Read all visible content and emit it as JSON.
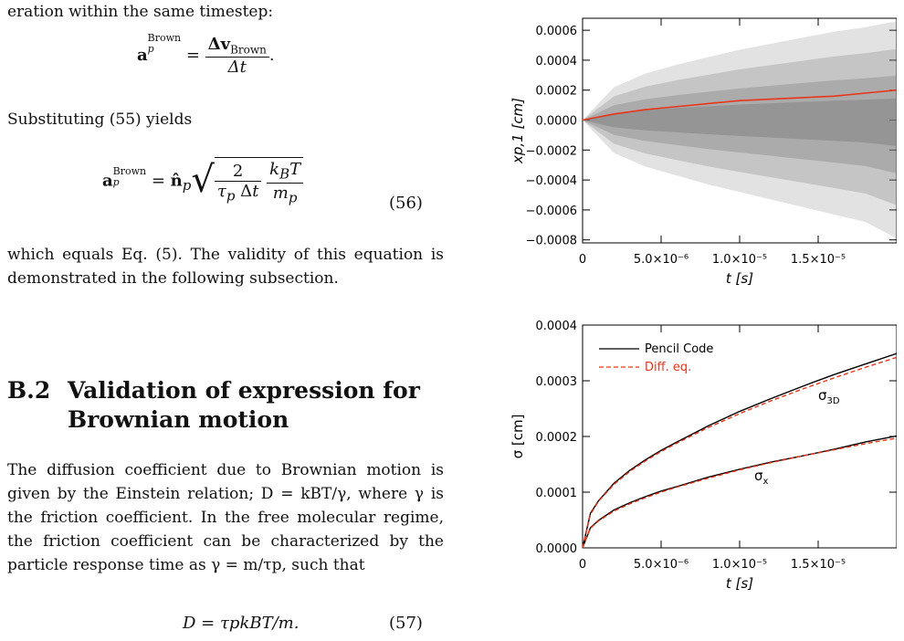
{
  "text": {
    "p1": "eration within the same timestep:",
    "eq1_lhs": "a",
    "eq1_sup": "Brown",
    "eq1_sub": "p",
    "eq1_num": "Δv",
    "eq1_num_sub": "Brown",
    "eq1_den": "Δt",
    "p2": "Substituting (55) yields",
    "eq2_number": "(56)",
    "p3": "which equals Eq. (5). The validity of this equation is demonstrated in the following subsection.",
    "section_number": "B.2",
    "section_title_1": "Validation of expression for",
    "section_title_2": "Brownian motion",
    "p4": "The diffusion coefficient due to Brownian motion is given by the Einstein relation; D = kBT/γ, where γ is the friction coefficient. In the free molecular regime, the friction coefficient can be characterized by the particle response time as γ = m/τp, such that",
    "eq3": "D = τpkBT/m.",
    "eq3_number": "(57)"
  },
  "chart_data": [
    {
      "type": "line",
      "title": "",
      "xlabel": "t [s]",
      "ylabel": "xp,1 [cm]",
      "xlim": [
        0,
        2e-05
      ],
      "ylim": [
        -0.00082,
        0.00068
      ],
      "xticks": [
        "0",
        "5.0×10⁻⁶",
        "1.0×10⁻⁵",
        "1.5×10⁻⁵"
      ],
      "yticks": [
        "0.0006",
        "0.0004",
        "0.0002",
        "0.0000",
        "−0.0002",
        "−0.0004",
        "−0.0006",
        "−0.0008"
      ],
      "x": [
        0,
        2e-06,
        4e-06,
        6e-06,
        8e-06,
        1e-05,
        1.2e-05,
        1.4e-05,
        1.6e-05,
        1.8e-05,
        2e-05
      ],
      "series": [
        {
          "values": [
            0,
            4e-05,
            7e-05,
            9e-05,
            0.00011,
            0.00013,
            0.00014,
            0.00015,
            0.00016,
            0.00018,
            0.0002
          ],
          "color": "#e8361a"
        }
      ],
      "band_upper": [
        0,
        0.00022,
        0.00031,
        0.00037,
        0.00042,
        0.00047,
        0.00051,
        0.00055,
        0.00059,
        0.00062,
        0.00066
      ],
      "band_lower": [
        0,
        -0.00022,
        -0.00031,
        -0.00037,
        -0.00043,
        -0.00048,
        -0.00053,
        -0.00058,
        -0.00063,
        -0.00068,
        -0.00079
      ],
      "band_color": "#7a7a7a"
    },
    {
      "type": "line",
      "title": "",
      "xlabel": "t [s]",
      "ylabel": "σ [cm]",
      "xlim": [
        0,
        2e-05
      ],
      "ylim": [
        0,
        0.0004
      ],
      "xticks": [
        "0",
        "5.0×10⁻⁶",
        "1.0×10⁻⁵",
        "1.5×10⁻⁵"
      ],
      "yticks": [
        "0.0004",
        "0.0003",
        "0.0002",
        "0.0001",
        "0.0000"
      ],
      "legend": [
        "Pencil Code",
        "Diff. eq."
      ],
      "legend_position": "top-left",
      "annotations": [
        "σ3D",
        "σx"
      ],
      "x": [
        0,
        5e-07,
        1e-06,
        2e-06,
        3e-06,
        4e-06,
        5e-06,
        6e-06,
        8e-06,
        1e-05,
        1.2e-05,
        1.4e-05,
        1.6e-05,
        1.8e-05,
        2e-05
      ],
      "series": [
        {
          "name": "Pencil Code",
          "curve": "σ3D",
          "style": "solid",
          "color": "#000000",
          "values": [
            0,
            6.2e-05,
            8.4e-05,
            0.000116,
            0.000139,
            0.000158,
            0.000175,
            0.00019,
            0.000219,
            0.000245,
            0.000268,
            0.00029,
            0.000311,
            0.00033,
            0.000349
          ]
        },
        {
          "name": "Diff. eq.",
          "curve": "σ3D",
          "style": "dashed",
          "color": "#e8361a",
          "values": [
            0,
            6e-05,
            8.3e-05,
            0.000114,
            0.000137,
            0.000156,
            0.000173,
            0.000188,
            0.000216,
            0.000241,
            0.000264,
            0.000285,
            0.000305,
            0.000324,
            0.000342
          ]
        },
        {
          "name": "Pencil Code",
          "curve": "σx",
          "style": "solid",
          "color": "#000000",
          "values": [
            0,
            3.6e-05,
            4.9e-05,
            6.8e-05,
            8.1e-05,
            9.2e-05,
            0.000102,
            0.00011,
            0.000127,
            0.000141,
            0.000154,
            0.000165,
            0.000177,
            0.00019,
            0.000201
          ]
        },
        {
          "name": "Diff. eq.",
          "curve": "σx",
          "style": "dashed",
          "color": "#e8361a",
          "values": [
            0,
            3.5e-05,
            4.8e-05,
            6.6e-05,
            7.9e-05,
            9e-05,
            0.0001,
            0.000109,
            0.000125,
            0.00014,
            0.000153,
            0.000165,
            0.000176,
            0.000187,
            0.000197
          ]
        }
      ]
    }
  ]
}
